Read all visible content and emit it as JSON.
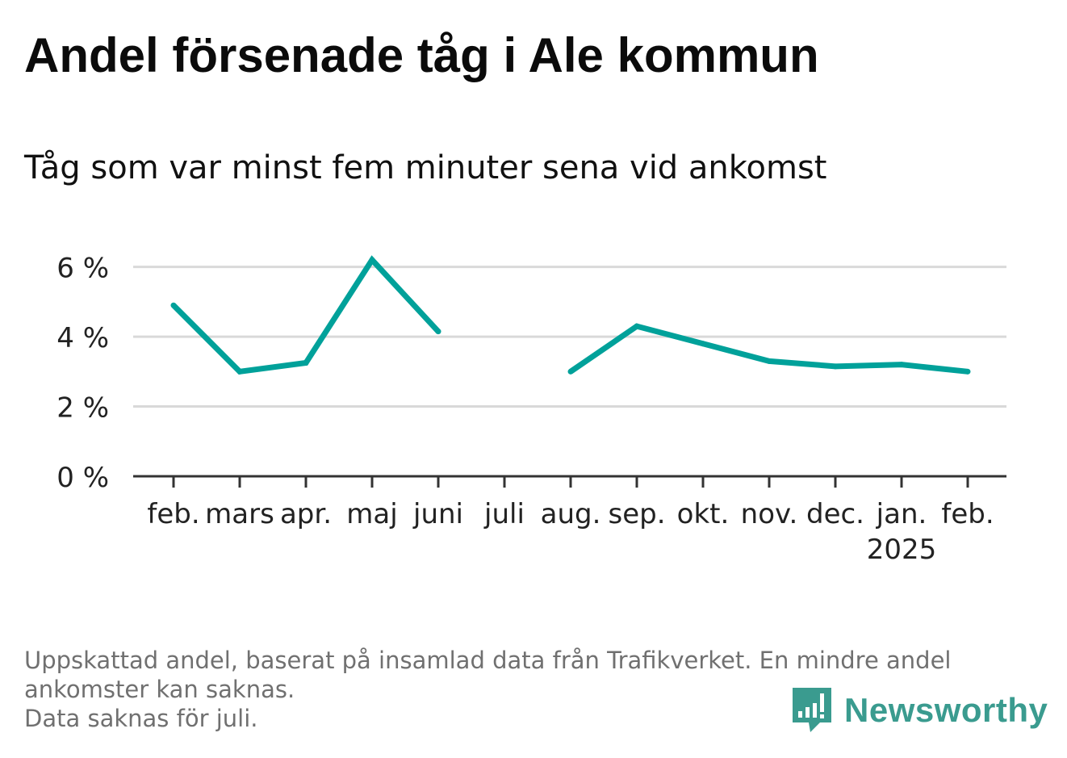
{
  "title": "Andel försenade tåg i Ale kommun",
  "subtitle": "Tåg som var minst fem minuter sena vid ankomst",
  "footnote": {
    "line1": "Uppskattad andel, baserat på insamlad data från Trafikverket. En mindre andel",
    "line2": "ankomster kan saknas.",
    "line3": "Data saknas för juli."
  },
  "brand": {
    "name": "Newsworthy",
    "color": "#3a9b8f"
  },
  "colors": {
    "line": "#00a19a",
    "grid": "#d9d9d9",
    "axis": "#333333",
    "tick_label": "#222222"
  },
  "chart_data": {
    "type": "line",
    "categories": [
      "feb.",
      "mars",
      "apr.",
      "maj",
      "juni",
      "juli",
      "aug.",
      "sep.",
      "okt.",
      "nov.",
      "dec.",
      "jan.",
      "feb."
    ],
    "year_label": {
      "category_index": 11,
      "text": "2025"
    },
    "series": [
      {
        "values": [
          4.9,
          3.0,
          3.25,
          6.2,
          4.15,
          null,
          3.0,
          4.3,
          3.8,
          3.3,
          3.15,
          3.2,
          3.0
        ]
      }
    ],
    "y_ticks": [
      0,
      2,
      4,
      6
    ],
    "y_tick_labels": [
      "0 %",
      "2 %",
      "4 %",
      "6 %"
    ],
    "ylim": [
      0,
      6.2
    ],
    "grid": true,
    "xlabel": "",
    "ylabel": ""
  }
}
